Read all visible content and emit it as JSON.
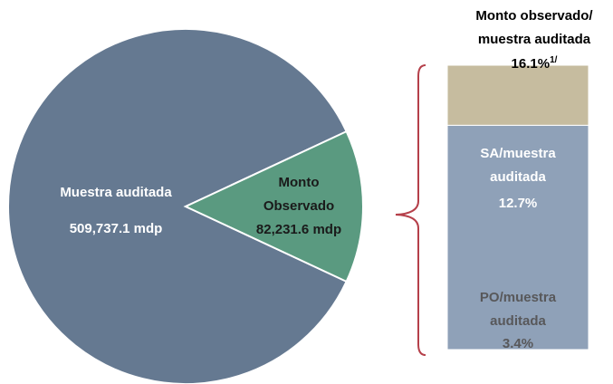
{
  "chart_data": [
    {
      "type": "pie",
      "categories": [
        "Muestra auditada",
        "Monto Observado"
      ],
      "values": [
        509737.1,
        82231.6
      ],
      "value_labels": [
        "509,737.1 mdp",
        "82,231.6 mdp"
      ],
      "colors": [
        "#657991",
        "#5a9a80"
      ]
    },
    {
      "type": "stacked_bar",
      "total_label": "Monto observado/ muestra auditada",
      "total": 16.1,
      "total_value_label": "16.1%",
      "footnote_mark": "1/",
      "series": [
        {
          "name": "SA/muestra auditada",
          "color": "#8fa1b8",
          "values": [
            12.7
          ],
          "value_labels": [
            "12.7%"
          ]
        },
        {
          "name": "PO/muestra auditada",
          "color": "#c6bc9f",
          "values": [
            3.4
          ],
          "value_labels": [
            "3.4%"
          ]
        }
      ]
    }
  ]
}
